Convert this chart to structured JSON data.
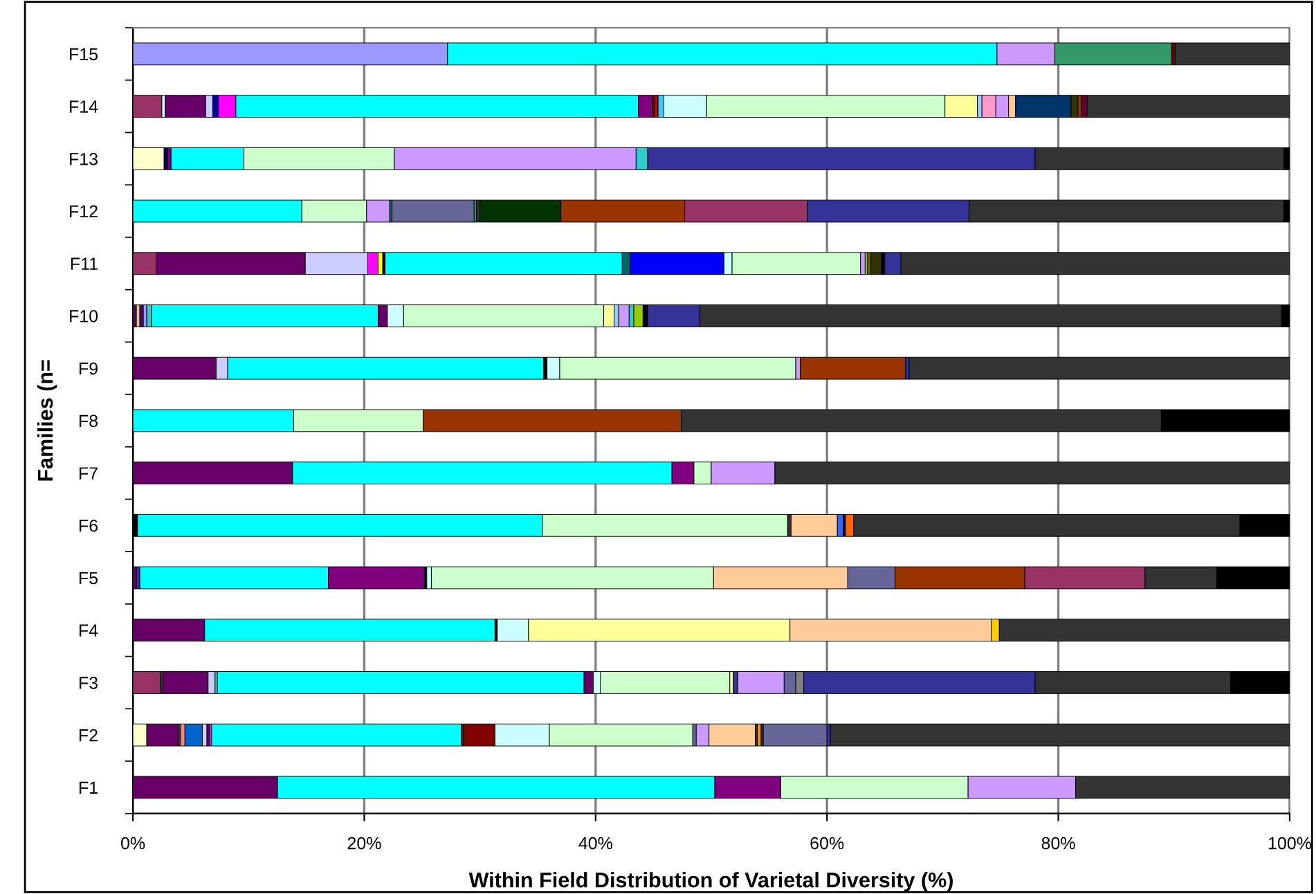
{
  "chart_data": {
    "type": "bar",
    "orientation": "horizontal",
    "stacked": true,
    "xlabel": "Within Field Distribution of Varietal Diversity (%)",
    "ylabel": "Families (n=",
    "categories": [
      "F15",
      "F14",
      "F13",
      "F12",
      "F11",
      "F10",
      "F9",
      "F8",
      "F7",
      "F6",
      "F5",
      "F4",
      "F3",
      "F2",
      "F1"
    ],
    "xlim": [
      0,
      100
    ],
    "xticks": [
      {
        "value": 0,
        "label": "0%"
      },
      {
        "value": 20,
        "label": "20%"
      },
      {
        "value": 40,
        "label": "40%"
      },
      {
        "value": 60,
        "label": "60%"
      },
      {
        "value": 80,
        "label": "80%"
      },
      {
        "value": 100,
        "label": "100%"
      }
    ],
    "grid": "x",
    "legend": false,
    "series": [
      {
        "values": [
          27.2,
          2.5,
          2.7,
          14.6,
          2.0,
          0.3,
          7.2,
          13.9,
          13.8,
          0.4,
          0.3,
          6.2,
          2.4,
          1.2,
          12.5
        ],
        "colors": [
          "#9999ff",
          "#993366",
          "#ffffcc",
          "#00ffff",
          "#993366",
          "#660066",
          "#660066",
          "#00ffff",
          "#660066",
          "#000000",
          "#660066",
          "#660066",
          "#993366",
          "#ffffcc",
          "#660066"
        ]
      },
      {
        "values": [
          47.5,
          0.3,
          0.3,
          5.6,
          12.9,
          0.3,
          1.0,
          11.2,
          32.8,
          35.0,
          0.3,
          25.1,
          0.2,
          2.7,
          37.8
        ],
        "colors": [
          "#00ffff",
          "#ccffff",
          "#000066",
          "#ccffcc",
          "#660066",
          "#cccc99",
          "#ccccff",
          "#ccffcc",
          "#00ffff",
          "#00ffff",
          "#333399",
          "#00ffff",
          "#333333",
          "#660066",
          "#00ffff"
        ]
      },
      {
        "values": [
          5.0,
          3.5,
          0.3,
          2.0,
          5.4,
          0.3,
          27.3,
          22.3,
          1.9,
          21.2,
          16.3,
          0.2,
          3.9,
          0.2,
          5.7
        ],
        "colors": [
          "#cc99ff",
          "#660066",
          "#800080",
          "#cc99ff",
          "#ccccff",
          "#660066",
          "#00ffff",
          "#993300",
          "#800080",
          "#ccffcc",
          "#00ffff",
          "#000000",
          "#660066",
          "#333333",
          "#800080"
        ]
      },
      {
        "values": [
          10.1,
          0.6,
          6.3,
          0.2,
          0.9,
          0.3,
          0.3,
          41.5,
          1.5,
          0.3,
          8.3,
          2.7,
          0.6,
          0.4,
          16.2
        ],
        "colors": [
          "#339966",
          "#ccccff",
          "#00ffff",
          "#006666",
          "#ff00ff",
          "#9999ff",
          "#000000",
          "#333333",
          "#ccffcc",
          "#333333",
          "#800080",
          "#ccffff",
          "#ccccff",
          "#ff8080",
          "#ccffcc"
        ]
      },
      {
        "values": [
          0.3,
          0.5,
          13.0,
          7.1,
          0.4,
          0.4,
          1.1,
          11.1,
          5.5,
          4.0,
          0.2,
          22.6,
          0.2,
          1.5,
          9.3
        ],
        "colors": [
          "#660000",
          "#000099",
          "#ccffcc",
          "#666699",
          "#ffff00",
          "#33cccc",
          "#ccffff",
          "#000000",
          "#cc99ff",
          "#ffcc99",
          "#000000",
          "#ffff99",
          "#33cccc",
          "#0066cc",
          "#cc99ff"
        ]
      },
      {
        "values": [
          9.9,
          1.5,
          20.9,
          0.2,
          0.2,
          19.6,
          20.4,
          null,
          44.5,
          0.5,
          0.4,
          17.4,
          31.7,
          0.4,
          18.5
        ],
        "colors": [
          "#333333",
          "#ff00ff",
          "#cc99ff",
          "#339966",
          "#000000",
          "#00ffff",
          "#ccffcc",
          null,
          "#333333",
          "#3366ff",
          "#ccffff",
          "#ffcc99",
          "#00ffff",
          "#ccccff",
          "#333333"
        ]
      },
      {
        "values": [
          null,
          34.8,
          1.0,
          0.3,
          20.5,
          0.8,
          0.4,
          null,
          null,
          0.2,
          24.4,
          0.7,
          0.8,
          0.2,
          null
        ],
        "colors": [
          null,
          "#00ffff",
          "#33cccc",
          "#333333",
          "#00ffff",
          "#660066",
          "#cc99ff",
          null,
          null,
          "#000080",
          "#ccffcc",
          "#ffcc00",
          "#660066",
          "#660066",
          null
        ]
      },
      {
        "values": [
          null,
          1.2,
          33.5,
          7.0,
          0.7,
          1.4,
          9.1,
          null,
          null,
          0.7,
          11.6,
          25.1,
          0.6,
          0.2,
          null
        ],
        "colors": [
          null,
          "#800080",
          "#333399",
          "#003300",
          "#006666",
          "#ccffff",
          "#993300",
          null,
          null,
          "#ff6600",
          "#ffcc99",
          "#333333",
          "#ccffff",
          "#ff00ff",
          null
        ]
      },
      {
        "values": [
          null,
          0.2,
          21.5,
          10.7,
          8.1,
          17.3,
          0.3,
          null,
          null,
          33.4,
          4.1,
          null,
          11.2,
          21.6,
          null
        ],
        "colors": [
          null,
          "#800000",
          "#333333",
          "#993300",
          "#0000ff",
          "#ccffcc",
          "#333399",
          null,
          null,
          "#333333",
          "#666699",
          null,
          "#ccffcc",
          "#00ffff",
          null
        ]
      },
      {
        "values": [
          null,
          0.3,
          0.5,
          10.6,
          0.7,
          0.9,
          32.9,
          null,
          null,
          4.3,
          11.2,
          null,
          0.3,
          0.2,
          null
        ],
        "colors": [
          null,
          "#cc0000",
          "#000000",
          "#993366",
          "#ccffff",
          "#ffff99",
          "#333333",
          null,
          null,
          "#000000",
          "#993300",
          null,
          "#ffff99",
          "#333333",
          null
        ]
      },
      {
        "values": [
          null,
          0.5,
          null,
          14.0,
          11.1,
          0.4,
          null,
          null,
          null,
          null,
          10.4,
          null,
          0.4,
          2.7,
          null
        ],
        "colors": [
          null,
          "#33ccff",
          null,
          "#333399",
          "#ccffcc",
          "#99ccff",
          null,
          null,
          null,
          null,
          "#993366",
          null,
          "#333399",
          "#800000",
          null
        ]
      },
      {
        "values": [
          null,
          3.7,
          null,
          27.2,
          0.4,
          0.9,
          null,
          null,
          null,
          null,
          6.2,
          null,
          4.0,
          4.7,
          null
        ],
        "colors": [
          null,
          "#ccffff",
          null,
          "#333333",
          "#cc99ff",
          "#cc99ff",
          null,
          null,
          null,
          null,
          "#333333",
          null,
          "#cc99ff",
          "#ccffff",
          null
        ]
      },
      {
        "values": [
          null,
          20.6,
          null,
          0.5,
          0.2,
          0.4,
          null,
          null,
          null,
          null,
          6.3,
          null,
          1.0,
          12.4,
          null
        ],
        "colors": [
          null,
          "#ccffcc",
          null,
          "#000000",
          "#99cc00",
          "#33cccc",
          null,
          null,
          null,
          null,
          "#000000",
          null,
          "#666699",
          "#ccffcc",
          null
        ]
      },
      {
        "values": [
          null,
          2.8,
          null,
          null,
          0.3,
          0.8,
          null,
          null,
          null,
          null,
          null,
          null,
          0.7,
          0.3,
          null
        ],
        "colors": [
          null,
          "#ffff99",
          null,
          null,
          "#666600",
          "#99cc00",
          null,
          null,
          null,
          null,
          null,
          null,
          "#808080",
          "#666699",
          null
        ]
      },
      {
        "values": [
          null,
          0.4,
          null,
          null,
          0.9,
          0.4,
          null,
          null,
          null,
          null,
          null,
          null,
          20.0,
          1.1,
          null
        ],
        "colors": [
          null,
          "#99ccff",
          null,
          null,
          "#333300",
          "#000000",
          null,
          null,
          null,
          null,
          null,
          null,
          "#333399",
          "#cc99ff",
          null
        ]
      },
      {
        "values": [
          null,
          1.2,
          null,
          null,
          0.3,
          4.5,
          null,
          null,
          null,
          null,
          null,
          null,
          16.9,
          4.0,
          null
        ],
        "colors": [
          null,
          "#ff99cc",
          null,
          null,
          "#000000",
          "#333399",
          null,
          null,
          null,
          null,
          null,
          null,
          "#333333",
          "#ffcc99",
          null
        ]
      },
      {
        "values": [
          null,
          1.1,
          null,
          null,
          1.4,
          50.3,
          null,
          null,
          null,
          null,
          null,
          null,
          5.1,
          0.2,
          null
        ],
        "colors": [
          null,
          "#cc99ff",
          null,
          null,
          "#333399",
          "#333333",
          null,
          null,
          null,
          null,
          null,
          null,
          "#000000",
          "#333333",
          null
        ]
      },
      {
        "values": [
          null,
          0.6,
          null,
          null,
          33.6,
          0.7,
          null,
          null,
          null,
          null,
          null,
          null,
          null,
          0.3,
          null
        ],
        "colors": [
          null,
          "#ffcc99",
          null,
          null,
          "#333333",
          "#000000",
          null,
          null,
          null,
          null,
          null,
          null,
          null,
          "#ff9900",
          null
        ]
      },
      {
        "values": [
          null,
          4.8,
          null,
          null,
          null,
          null,
          null,
          null,
          null,
          null,
          null,
          null,
          null,
          0.2,
          null
        ],
        "colors": [
          null,
          "#003366",
          null,
          null,
          null,
          null,
          null,
          null,
          null,
          null,
          null,
          null,
          null,
          "#333333",
          null
        ]
      },
      {
        "values": [
          null,
          0.6,
          null,
          null,
          null,
          null,
          null,
          null,
          null,
          null,
          null,
          null,
          null,
          5.5,
          null
        ],
        "colors": [
          null,
          "#333300",
          null,
          null,
          null,
          null,
          null,
          null,
          null,
          null,
          null,
          null,
          null,
          "#666699",
          null
        ]
      },
      {
        "values": [
          null,
          0.3,
          null,
          null,
          null,
          null,
          null,
          null,
          null,
          null,
          null,
          null,
          null,
          0.3,
          null
        ],
        "colors": [
          null,
          "#993300",
          null,
          null,
          null,
          null,
          null,
          null,
          null,
          null,
          null,
          null,
          null,
          "#333399",
          null
        ]
      },
      {
        "values": [
          null,
          0.5,
          null,
          null,
          null,
          null,
          null,
          null,
          null,
          null,
          null,
          null,
          null,
          39.7,
          null
        ],
        "colors": [
          null,
          "#660033",
          null,
          null,
          null,
          null,
          null,
          null,
          null,
          null,
          null,
          null,
          null,
          "#333333",
          null
        ]
      },
      {
        "values": [
          null,
          17.5,
          null,
          null,
          null,
          null,
          null,
          null,
          null,
          null,
          null,
          null,
          null,
          null,
          null
        ],
        "colors": [
          null,
          "#333333",
          null,
          null,
          null,
          null,
          null,
          null,
          null,
          null,
          null,
          null,
          null,
          null,
          null
        ]
      }
    ]
  }
}
